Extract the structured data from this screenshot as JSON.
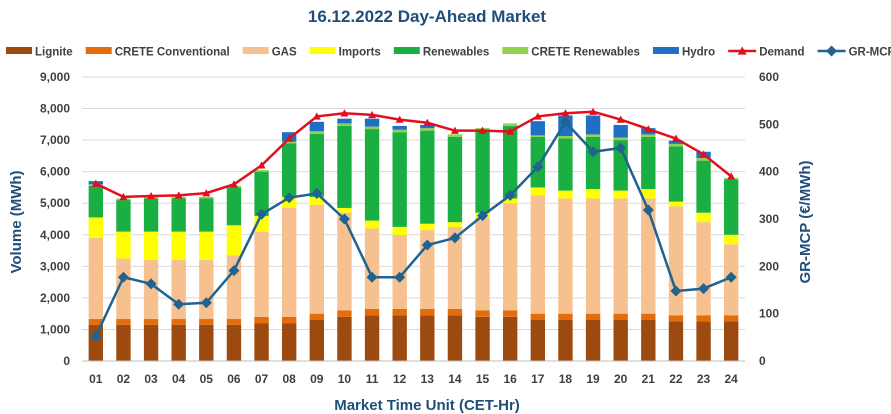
{
  "chart_data": {
    "type": "bar",
    "title": "16.12.2022  Day-Ahead Market",
    "xlabel": "Market Time Unit (CET-Hr)",
    "ylabel": "Volume (MWh)",
    "y2label": "GR-MCP (€/MWh)",
    "ylim": [
      0,
      9000
    ],
    "y2lim": [
      0,
      600
    ],
    "yticks": [
      "0",
      "1,000",
      "2,000",
      "3,000",
      "4,000",
      "5,000",
      "6,000",
      "7,000",
      "8,000",
      "9,000"
    ],
    "y2ticks": [
      "0",
      "100",
      "200",
      "300",
      "400",
      "500",
      "600"
    ],
    "categories": [
      "01",
      "02",
      "03",
      "04",
      "05",
      "06",
      "07",
      "08",
      "09",
      "10",
      "11",
      "12",
      "13",
      "14",
      "15",
      "16",
      "17",
      "18",
      "19",
      "20",
      "21",
      "22",
      "23",
      "24"
    ],
    "stacked_series": [
      {
        "name": "Lignite",
        "color": "#9c4a0f",
        "values": [
          1150,
          1150,
          1150,
          1150,
          1150,
          1150,
          1200,
          1200,
          1300,
          1400,
          1450,
          1450,
          1450,
          1450,
          1400,
          1400,
          1300,
          1300,
          1300,
          1300,
          1300,
          1250,
          1250,
          1250
        ]
      },
      {
        "name": "CRETE Conventional",
        "color": "#e46c0a",
        "values": [
          180,
          180,
          180,
          180,
          180,
          180,
          200,
          200,
          200,
          200,
          200,
          200,
          200,
          200,
          200,
          200,
          200,
          200,
          200,
          200,
          200,
          200,
          200,
          200
        ]
      },
      {
        "name": "GAS",
        "color": "#f6c08f",
        "values": [
          2570,
          1920,
          1870,
          1870,
          1870,
          2020,
          2700,
          3450,
          3450,
          3100,
          2550,
          2350,
          2500,
          2600,
          2950,
          3400,
          3750,
          3650,
          3650,
          3650,
          3650,
          3450,
          2950,
          2250
        ]
      },
      {
        "name": "Imports",
        "color": "#ffff00",
        "values": [
          650,
          850,
          900,
          900,
          900,
          950,
          500,
          350,
          250,
          150,
          250,
          250,
          200,
          150,
          150,
          150,
          250,
          250,
          300,
          250,
          300,
          150,
          300,
          300
        ]
      },
      {
        "name": "Renewables",
        "color": "#1aaf42",
        "values": [
          1000,
          1000,
          1050,
          1050,
          1050,
          1200,
          1400,
          1700,
          2000,
          2600,
          2900,
          3000,
          2950,
          2700,
          2600,
          2300,
          1600,
          1650,
          1650,
          1600,
          1650,
          1750,
          1650,
          1750
        ]
      },
      {
        "name": "CRETE Renewables",
        "color": "#92d050",
        "values": [
          50,
          50,
          50,
          50,
          50,
          50,
          50,
          50,
          80,
          80,
          80,
          80,
          80,
          80,
          80,
          80,
          50,
          80,
          80,
          80,
          80,
          80,
          80,
          50
        ]
      },
      {
        "name": "Hydro",
        "color": "#1f6fc4",
        "values": [
          100,
          0,
          0,
          0,
          0,
          0,
          0,
          300,
          300,
          150,
          250,
          120,
          100,
          0,
          0,
          0,
          450,
          650,
          600,
          400,
          200,
          100,
          200,
          0
        ]
      }
    ],
    "line_series": [
      {
        "name": "Demand",
        "color": "#e30f1f",
        "axis": "left",
        "marker": "triangle",
        "values": [
          5620,
          5200,
          5230,
          5250,
          5320,
          5600,
          6200,
          7050,
          7750,
          7850,
          7800,
          7650,
          7550,
          7300,
          7300,
          7270,
          7750,
          7850,
          7900,
          7650,
          7350,
          7050,
          6550,
          5850
        ]
      },
      {
        "name": "GR-MCP",
        "color": "#1f6391",
        "axis": "right",
        "marker": "diamond",
        "values": [
          52,
          177,
          163,
          120,
          123,
          191,
          310,
          345,
          354,
          300,
          177,
          177,
          245,
          260,
          307,
          350,
          410,
          505,
          442,
          450,
          319,
          148,
          153,
          177
        ]
      }
    ],
    "legend": [
      "Lignite",
      "CRETE Conventional",
      "GAS",
      "Imports",
      "Renewables",
      "CRETE Renewables",
      "Hydro",
      "Demand",
      "GR-MCP"
    ],
    "legend_position": "top"
  }
}
